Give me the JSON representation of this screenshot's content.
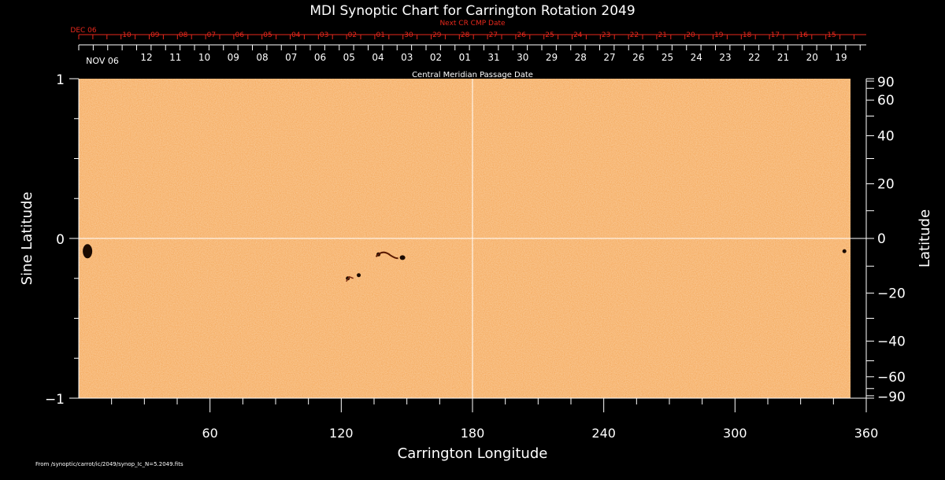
{
  "chart_data": {
    "type": "heatmap",
    "title": "MDI Synoptic Chart for Carrington Rotation 2049",
    "xlabel": "Carrington Longitude",
    "ylabel_left": "Sine Latitude",
    "ylabel_right": "Latitude",
    "xlim": [
      0,
      360
    ],
    "ylim": [
      -1,
      1
    ],
    "x_ticks": [
      60,
      120,
      180,
      240,
      300,
      360
    ],
    "y_ticks_left": [
      "1",
      "0",
      "−1"
    ],
    "y_ticks_right": [
      "90",
      "60",
      "40",
      "20",
      "0",
      "−20",
      "−40",
      "−60",
      "−90"
    ],
    "top_axis_red_label": "Next CR CMP Date",
    "top_axis_red_start": "DEC 06",
    "top_axis_red_dates": [
      "10",
      "09",
      "08",
      "07",
      "06",
      "05",
      "04",
      "03",
      "02",
      "01",
      "30",
      "29",
      "28",
      "27",
      "26",
      "25",
      "24",
      "23",
      "22",
      "21",
      "20",
      "19",
      "18",
      "17",
      "16",
      "15"
    ],
    "top_axis_white_start": "NOV 06",
    "top_axis_white_dates": [
      "12",
      "11",
      "10",
      "09",
      "08",
      "07",
      "06",
      "05",
      "04",
      "03",
      "02",
      "01",
      "31",
      "30",
      "29",
      "28",
      "27",
      "26",
      "25",
      "24",
      "23",
      "22",
      "21",
      "20",
      "19"
    ],
    "top_axis_label": "Central Meridian Passage Date",
    "footer": "From /synoptic/carrot/ic/2049/synop_Ic_N=5.2049.fits",
    "background_color": "#f5a85a",
    "spot_color": "#1a0a00",
    "grid_color": "#ffffff",
    "red_axis_color": "#e8281c",
    "features": [
      {
        "lon": 4,
        "sinlat": -0.08
      },
      {
        "lon": 137,
        "sinlat": -0.1
      },
      {
        "lon": 148,
        "sinlat": -0.12
      },
      {
        "lon": 123,
        "sinlat": -0.25
      },
      {
        "lon": 128,
        "sinlat": -0.23
      },
      {
        "lon": 350,
        "sinlat": -0.08
      }
    ]
  }
}
